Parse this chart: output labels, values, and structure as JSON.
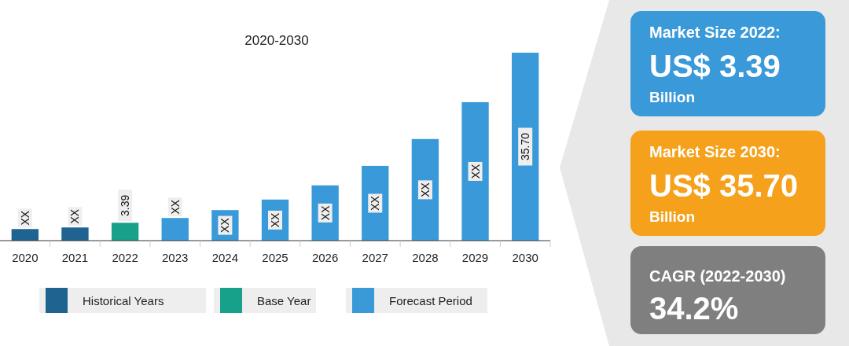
{
  "chart_data": [
    {
      "type": "bar",
      "title": "2020-2030",
      "legend": "bottom",
      "categories": [
        "2020",
        "2021",
        "2022",
        "2023",
        "2024",
        "2025",
        "2026",
        "2027",
        "2028",
        "2029",
        "2030"
      ],
      "series": [
        {
          "name": "Historical Years",
          "color": "#1f6391",
          "values": [
            2.2,
            2.5,
            null,
            null,
            null,
            null,
            null,
            null,
            null,
            null,
            null
          ],
          "value_labels": [
            "XX",
            "XX",
            null,
            null,
            null,
            null,
            null,
            null,
            null,
            null,
            null
          ]
        },
        {
          "name": "Base Year",
          "color": "#17a08a",
          "values": [
            null,
            null,
            3.39,
            null,
            null,
            null,
            null,
            null,
            null,
            null,
            null
          ],
          "value_labels": [
            null,
            null,
            "3.39",
            null,
            null,
            null,
            null,
            null,
            null,
            null,
            null
          ]
        },
        {
          "name": "Forecast Period",
          "color": "#3a9ad9",
          "values": [
            null,
            null,
            null,
            4.3,
            5.8,
            7.8,
            10.5,
            14.2,
            19.3,
            26.3,
            35.7
          ],
          "value_labels": [
            null,
            null,
            null,
            "XX",
            "XX",
            "XX",
            "XX",
            "XX",
            "XX",
            "XX",
            "35.70"
          ]
        }
      ]
    },
    {
      "type": "other",
      "annotations": [
        "Market Size 2022:",
        "US$ 3.39",
        "Billion",
        "Market Size 2030:",
        "US$ 35.70",
        "Billion",
        "CAGR (2022-2030)",
        "34.2%"
      ]
    }
  ]
}
